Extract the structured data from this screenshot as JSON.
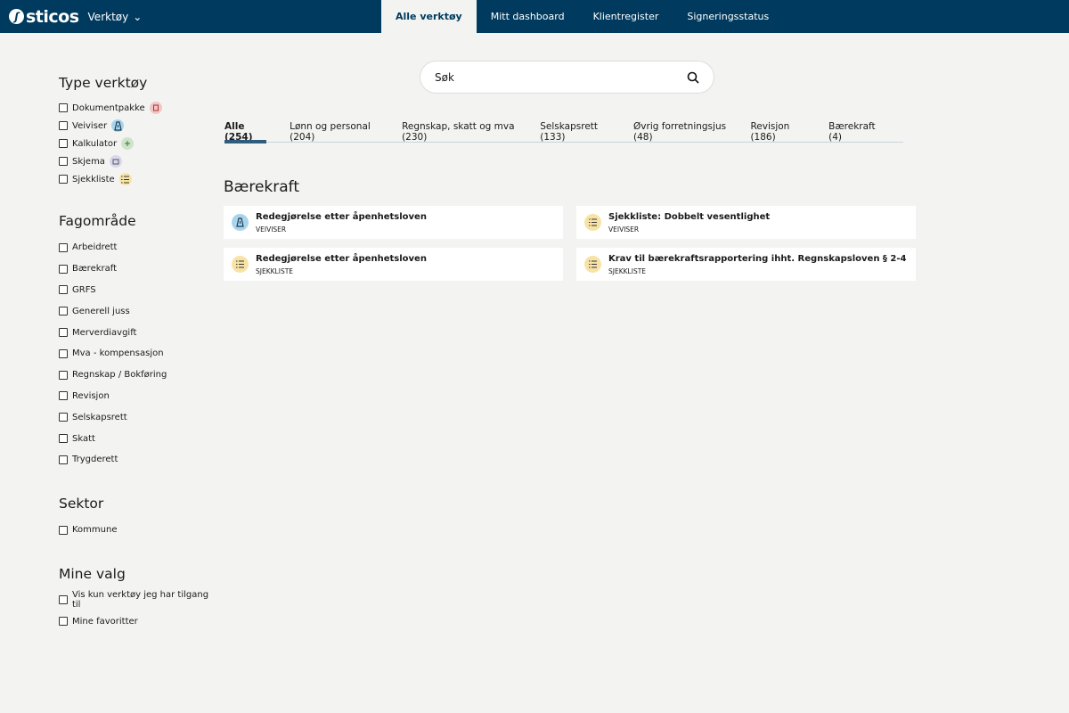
{
  "header": {
    "logo": "sticos",
    "tool_menu": "Verktøy",
    "nav": [
      "Alle verktøy",
      "Mitt dashboard",
      "Klientregister",
      "Signeringsstatus"
    ],
    "active_nav": 0
  },
  "search": {
    "value": "Søk"
  },
  "tabs": [
    "Alle (254)",
    "Lønn og personal  (204)",
    "Regnskap, skatt og mva (230)",
    "Selskapsrett (133)",
    "Øvrig forretningsjus (48)",
    "Revisjon (186)",
    "Bærekraft (4)"
  ],
  "filters": {
    "type": {
      "title": "Type verktøy",
      "items": [
        {
          "label": "Dokumentpakke",
          "icon": "document-icon",
          "color": "#f2c6c6"
        },
        {
          "label": "Veiviser",
          "icon": "signpost-icon",
          "color": "#a9d4ec"
        },
        {
          "label": "Kalkulator",
          "icon": "calculator-icon",
          "color": "#cfe3c8"
        },
        {
          "label": "Skjema",
          "icon": "form-icon",
          "color": "#d9d7ea"
        },
        {
          "label": "Sjekkliste",
          "icon": "checklist-icon",
          "color": "#f8e3a6"
        }
      ]
    },
    "fag": {
      "title": "Fagområde",
      "items": [
        "Arbeidrett",
        "Bærekraft",
        "GRFS",
        "Generell juss",
        "Merverdiavgift",
        "Mva - kompensasjon",
        "Regnskap / Bokføring",
        "Revisjon",
        "Selskapsrett",
        "Skatt",
        "Trygderett"
      ]
    },
    "sektor": {
      "title": "Sektor",
      "items": [
        "Kommune"
      ]
    },
    "mine": {
      "title": "Mine valg",
      "items": [
        "Vis kun verktøy jeg har tilgang til",
        "Mine favoritter"
      ]
    }
  },
  "section_title": "Bærekraft",
  "cards": [
    {
      "title": "Redegjørelse etter åpenhetsloven",
      "type": "VEIVISER",
      "icon": "signpost-icon"
    },
    {
      "title": "Sjekkliste: Dobbelt vesentlighet",
      "type": "VEIVISER",
      "icon": "checklist-icon"
    },
    {
      "title": "Redegjørelse etter åpenhetsloven",
      "type": "SJEKKLISTE",
      "icon": "checklist-icon"
    },
    {
      "title": "Krav til bærekraftsrapportering ihht. Regnskapsloven § 2-4",
      "type": "SJEKKLISTE",
      "icon": "checklist-icon"
    }
  ],
  "colors": {
    "header": "#003a5e",
    "background": "#f3f4f2",
    "veiviser": "#a9d4ec",
    "sjekkliste": "#f8e3a6"
  }
}
